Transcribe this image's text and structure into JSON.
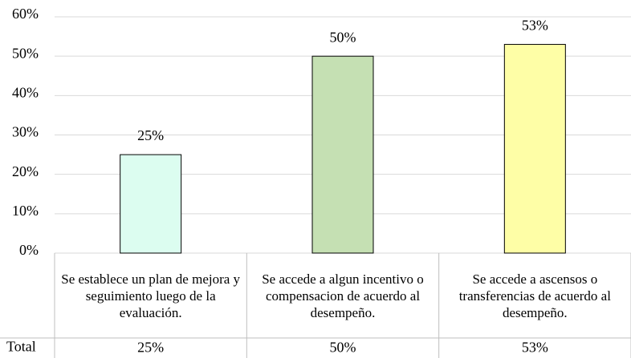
{
  "chart_data": {
    "type": "bar",
    "categories": [
      "Se establece un plan de mejora y seguimiento luego de la evaluación.",
      "Se accede a algun incentivo o compensacion de acuerdo al desempeño.",
      "Se accede a ascensos o transferencias de acuerdo al desempeño."
    ],
    "series": [
      {
        "name": "Total",
        "colors": [
          "#dcfdf0",
          "#c5e0b3",
          "#fefea6"
        ],
        "values": [
          25,
          50,
          53
        ],
        "value_labels": [
          "25%",
          "50%",
          "53%"
        ]
      }
    ],
    "ylim": [
      0,
      60
    ],
    "yticks": [
      {
        "value": 0,
        "label": "0%"
      },
      {
        "value": 10,
        "label": "10%"
      },
      {
        "value": 20,
        "label": "20%"
      },
      {
        "value": 30,
        "label": "30%"
      },
      {
        "value": 40,
        "label": "40%"
      },
      {
        "value": 50,
        "label": "50%"
      },
      {
        "value": 60,
        "label": "60%"
      }
    ],
    "grid": true
  }
}
